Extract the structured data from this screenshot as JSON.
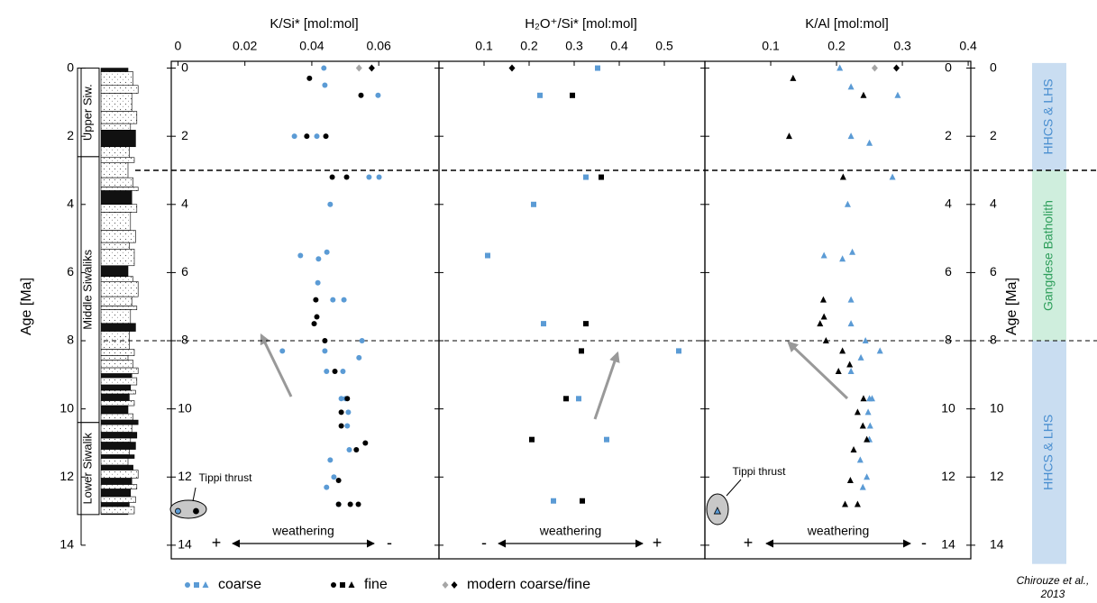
{
  "figure": {
    "y_label": "Age [Ma]",
    "units": [
      {
        "label": "Upper Siw.",
        "from": 0,
        "to": 2.6
      },
      {
        "label": "Middle Siwaliks",
        "from": 2.6,
        "to": 10.4
      },
      {
        "label": "Lower Siwalik",
        "from": 10.4,
        "to": 13.1
      }
    ],
    "provinces": [
      {
        "label": "HHCS & LHS",
        "from": -0.15,
        "to": 3.0,
        "color": "#c9ddf1",
        "text_color": "#4a8fd0"
      },
      {
        "label": "Gangdese Batholith",
        "from": 3.0,
        "to": 8.0,
        "color": "#cfeedd",
        "text_color": "#2e9e5b"
      },
      {
        "label": "HHCS & LHS",
        "from": 8.0,
        "to": 14.55,
        "color": "#c9ddf1",
        "text_color": "#4a8fd0"
      }
    ],
    "boundaries": [
      3,
      8
    ],
    "credit": [
      "Chirouze et al.,",
      "2013"
    ]
  },
  "chart_data": [
    {
      "type": "scatter",
      "title": "K/Si* [mol:mol]",
      "marker": "circle",
      "xlim": [
        -0.002,
        0.078
      ],
      "xticks": [
        0,
        0.02,
        0.04,
        0.06
      ],
      "ylim": [
        -0.2,
        14.4
      ],
      "yticks": [
        0,
        2,
        4,
        6,
        8,
        10,
        12,
        14
      ],
      "y_inverted": true,
      "annotations": {
        "weathering": "weathering",
        "left": "+",
        "right": "-",
        "tippi": "Tippi thrust"
      },
      "series": [
        {
          "name": "coarse",
          "color": "#5b9bd5",
          "x": [
            0.0436,
            0.0439,
            0.0598,
            0.0348,
            0.0415,
            0.0571,
            0.0601,
            0.0455,
            0.0445,
            0.0366,
            0.042,
            0.0418,
            0.0463,
            0.0496,
            0.055,
            0.0312,
            0.0439,
            0.0541,
            0.0444,
            0.0493,
            0.0488,
            0.0501,
            0.0509,
            0.0506,
            0.0512,
            0.0455,
            0.0466,
            0.0444,
            0.048,
            0.0
          ],
          "values": [
            0,
            0.5,
            0.8,
            2,
            2,
            3.2,
            3.2,
            4,
            5.4,
            5.5,
            5.6,
            6.3,
            6.8,
            6.8,
            8,
            8.3,
            8.3,
            8.5,
            8.9,
            8.9,
            9.7,
            9.7,
            10.1,
            10.5,
            11.2,
            11.5,
            12,
            12.3,
            12.8,
            13
          ]
        },
        {
          "name": "fine",
          "color": "#000000",
          "x": [
            0.0393,
            0.0547,
            0.0385,
            0.0442,
            0.0461,
            0.0504,
            0.0412,
            0.0415,
            0.0407,
            0.0439,
            0.0469,
            0.0506,
            0.0488,
            0.0488,
            0.056,
            0.0533,
            0.048,
            0.048,
            0.0515,
            0.0539,
            0.0054
          ],
          "values": [
            0.3,
            0.8,
            2,
            2,
            3.2,
            3.2,
            6.8,
            7.3,
            7.5,
            8,
            8.9,
            9.7,
            10.1,
            10.5,
            11,
            11.2,
            12.1,
            12.8,
            12.8,
            12.8,
            13
          ]
        },
        {
          "name": "modern coarse/fine",
          "colors": [
            "#a6a6a6",
            "#000000"
          ],
          "marker": "diamond",
          "x": [
            0.0541,
            0.0579
          ],
          "values": [
            0,
            0
          ]
        }
      ]
    },
    {
      "type": "scatter",
      "title": "H₂O⁺/Si* [mol:mol]",
      "marker": "square",
      "xlim": [
        0,
        0.59
      ],
      "xticks": [
        0.1,
        0.2,
        0.3,
        0.4,
        0.5
      ],
      "ylim": [
        -0.2,
        14.4
      ],
      "yticks": [
        0,
        2,
        4,
        6,
        8,
        10,
        12,
        14
      ],
      "y_inverted": true,
      "annotations": {
        "weathering": "weathering",
        "left": "-",
        "right": "+"
      },
      "series": [
        {
          "name": "coarse",
          "color": "#5b9bd5",
          "x": [
            0.352,
            0.224,
            0.326,
            0.21,
            0.108,
            0.232,
            0.532,
            0.31,
            0.372,
            0.254
          ],
          "values": [
            0,
            0.8,
            3.2,
            4,
            5.5,
            7.5,
            8.3,
            9.7,
            10.9,
            12.7
          ]
        },
        {
          "name": "fine",
          "color": "#000000",
          "x": [
            0.296,
            0.36,
            0.326,
            0.316,
            0.282,
            0.206,
            0.318
          ],
          "values": [
            0.8,
            3.2,
            7.5,
            8.3,
            9.7,
            10.9,
            12.7
          ]
        },
        {
          "name": "modern coarse/fine",
          "colors": [
            "#000000"
          ],
          "marker": "diamond",
          "x": [
            0.162
          ],
          "values": [
            0
          ]
        }
      ]
    },
    {
      "type": "scatter",
      "title": "K/Al [mol:mol]",
      "marker": "triangle",
      "xlim": [
        0,
        0.404
      ],
      "xticks": [
        0.1,
        0.2,
        0.3,
        0.4
      ],
      "ylim": [
        -0.2,
        14.4
      ],
      "yticks": [
        0,
        2,
        4,
        6,
        8,
        10,
        12,
        14
      ],
      "y_inverted": true,
      "annotations": {
        "weathering": "weathering",
        "left": "+",
        "right": "-",
        "tippi": "Tippi thrust"
      },
      "series": [
        {
          "name": "coarse",
          "color": "#5b9bd5",
          "x": [
            0.205,
            0.222,
            0.293,
            0.222,
            0.25,
            0.285,
            0.217,
            0.224,
            0.181,
            0.209,
            0.222,
            0.222,
            0.244,
            0.266,
            0.237,
            0.222,
            0.25,
            0.254,
            0.248,
            0.251,
            0.25,
            0.236,
            0.246,
            0.24,
            0.019
          ],
          "values": [
            0,
            0.55,
            0.8,
            2,
            2.2,
            3.2,
            4,
            5.4,
            5.5,
            5.6,
            6.8,
            7.5,
            8,
            8.3,
            8.5,
            8.9,
            9.7,
            9.7,
            10.1,
            10.5,
            10.9,
            11.5,
            12,
            12.3,
            13
          ]
        },
        {
          "name": "fine",
          "color": "#000000",
          "x": [
            0.134,
            0.241,
            0.128,
            0.21,
            0.18,
            0.181,
            0.175,
            0.184,
            0.209,
            0.22,
            0.203,
            0.241,
            0.232,
            0.24,
            0.246,
            0.226,
            0.221,
            0.213,
            0.232
          ],
          "values": [
            0.3,
            0.8,
            2,
            3.2,
            6.8,
            7.3,
            7.5,
            8,
            8.3,
            8.7,
            8.9,
            9.7,
            10.1,
            10.5,
            10.9,
            11.2,
            12.1,
            12.8,
            12.8
          ]
        },
        {
          "name": "modern coarse/fine",
          "colors": [
            "#a6a6a6",
            "#000000"
          ],
          "marker": "diamond",
          "x": [
            0.258,
            0.291
          ],
          "values": [
            0,
            0
          ]
        }
      ]
    }
  ]
}
